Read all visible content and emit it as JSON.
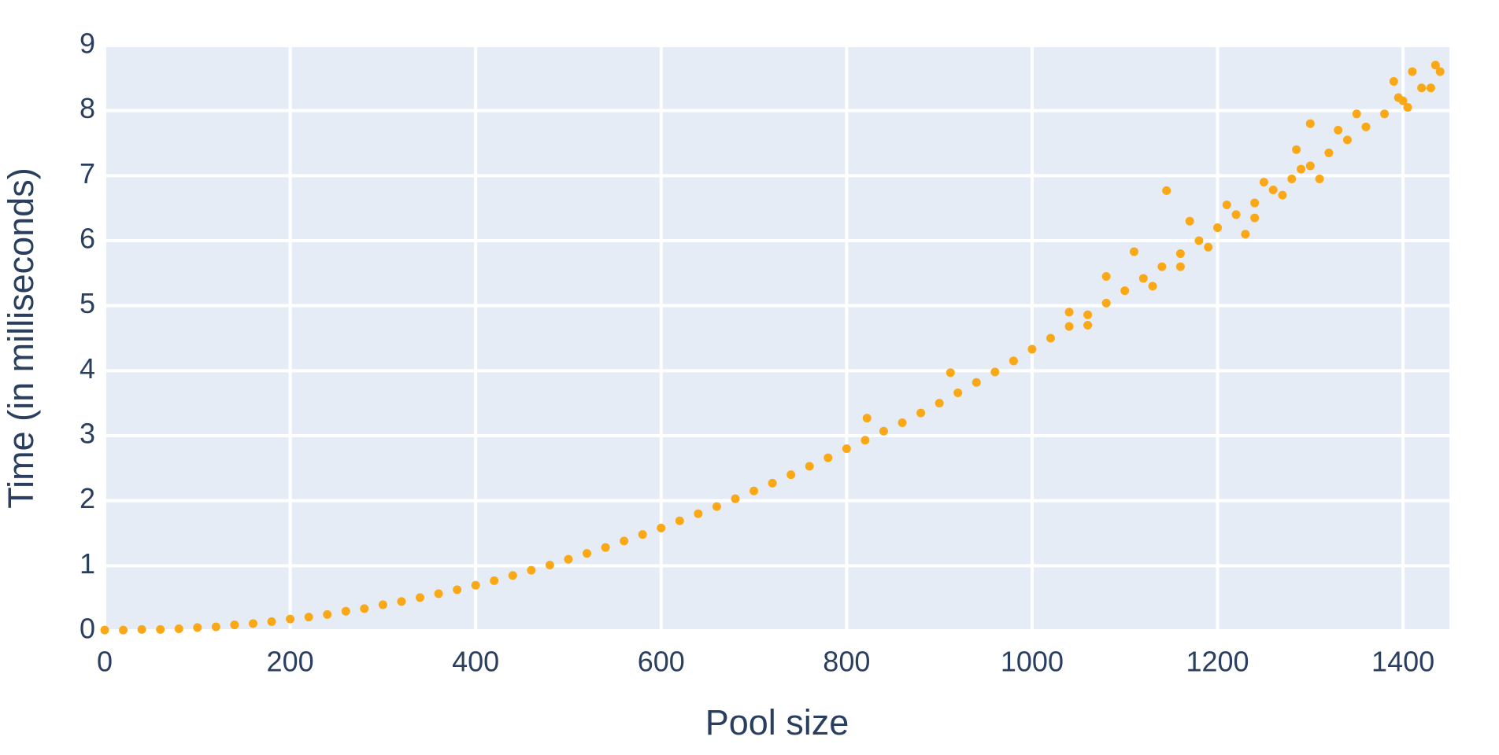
{
  "chart_data": {
    "type": "scatter",
    "x_label": "Pool size",
    "y_label": "Time (in milliseconds)",
    "color": "#fba817",
    "xlim": [
      0,
      1450
    ],
    "ylim": [
      0,
      9
    ],
    "xticks": [
      0,
      200,
      400,
      600,
      800,
      1000,
      1200,
      1400
    ],
    "yticks": [
      0,
      1,
      2,
      3,
      4,
      5,
      6,
      7,
      8,
      9
    ],
    "grid": true,
    "x": [
      0,
      20,
      40,
      60,
      80,
      100,
      120,
      140,
      160,
      180,
      200,
      220,
      240,
      260,
      280,
      300,
      320,
      340,
      360,
      380,
      400,
      420,
      440,
      460,
      480,
      500,
      520,
      540,
      560,
      580,
      600,
      620,
      640,
      660,
      680,
      700,
      720,
      740,
      760,
      780,
      800,
      820,
      840,
      860,
      880,
      900,
      920,
      940,
      960,
      980,
      1000,
      1020,
      1040,
      1060,
      1080,
      1100,
      1120,
      1140,
      1160,
      1180,
      1200,
      1220,
      1240,
      1260,
      1280,
      1300,
      1320,
      1340,
      1360,
      1380,
      1400,
      1420,
      1440,
      822,
      912,
      1110,
      1145,
      1080,
      1130,
      1170,
      1190,
      1210,
      1230,
      1250,
      1270,
      1290,
      1300,
      1310,
      1330,
      1350,
      1390,
      1405,
      1410,
      1430,
      1435,
      1060,
      1040,
      1160,
      1240,
      1285,
      1395
    ],
    "values": [
      0.01,
      0.01,
      0.02,
      0.02,
      0.03,
      0.05,
      0.06,
      0.09,
      0.11,
      0.14,
      0.18,
      0.21,
      0.25,
      0.3,
      0.34,
      0.4,
      0.45,
      0.51,
      0.57,
      0.63,
      0.7,
      0.77,
      0.85,
      0.93,
      1.01,
      1.1,
      1.19,
      1.28,
      1.38,
      1.48,
      1.58,
      1.69,
      1.8,
      1.91,
      2.03,
      2.15,
      2.27,
      2.4,
      2.53,
      2.66,
      2.8,
      2.93,
      3.07,
      3.2,
      3.35,
      3.5,
      3.66,
      3.82,
      3.98,
      4.15,
      4.33,
      4.5,
      4.68,
      4.86,
      5.04,
      5.23,
      5.42,
      5.6,
      5.8,
      6.0,
      6.2,
      6.4,
      6.58,
      6.78,
      6.95,
      7.15,
      7.35,
      7.55,
      7.75,
      7.95,
      8.15,
      8.35,
      8.6,
      3.27,
      3.97,
      5.83,
      6.77,
      5.45,
      5.3,
      6.3,
      5.9,
      6.55,
      6.1,
      6.9,
      6.7,
      7.1,
      7.8,
      6.95,
      7.7,
      7.95,
      8.45,
      8.05,
      8.6,
      8.35,
      8.7,
      4.7,
      4.9,
      5.6,
      6.35,
      7.4,
      8.2
    ]
  }
}
